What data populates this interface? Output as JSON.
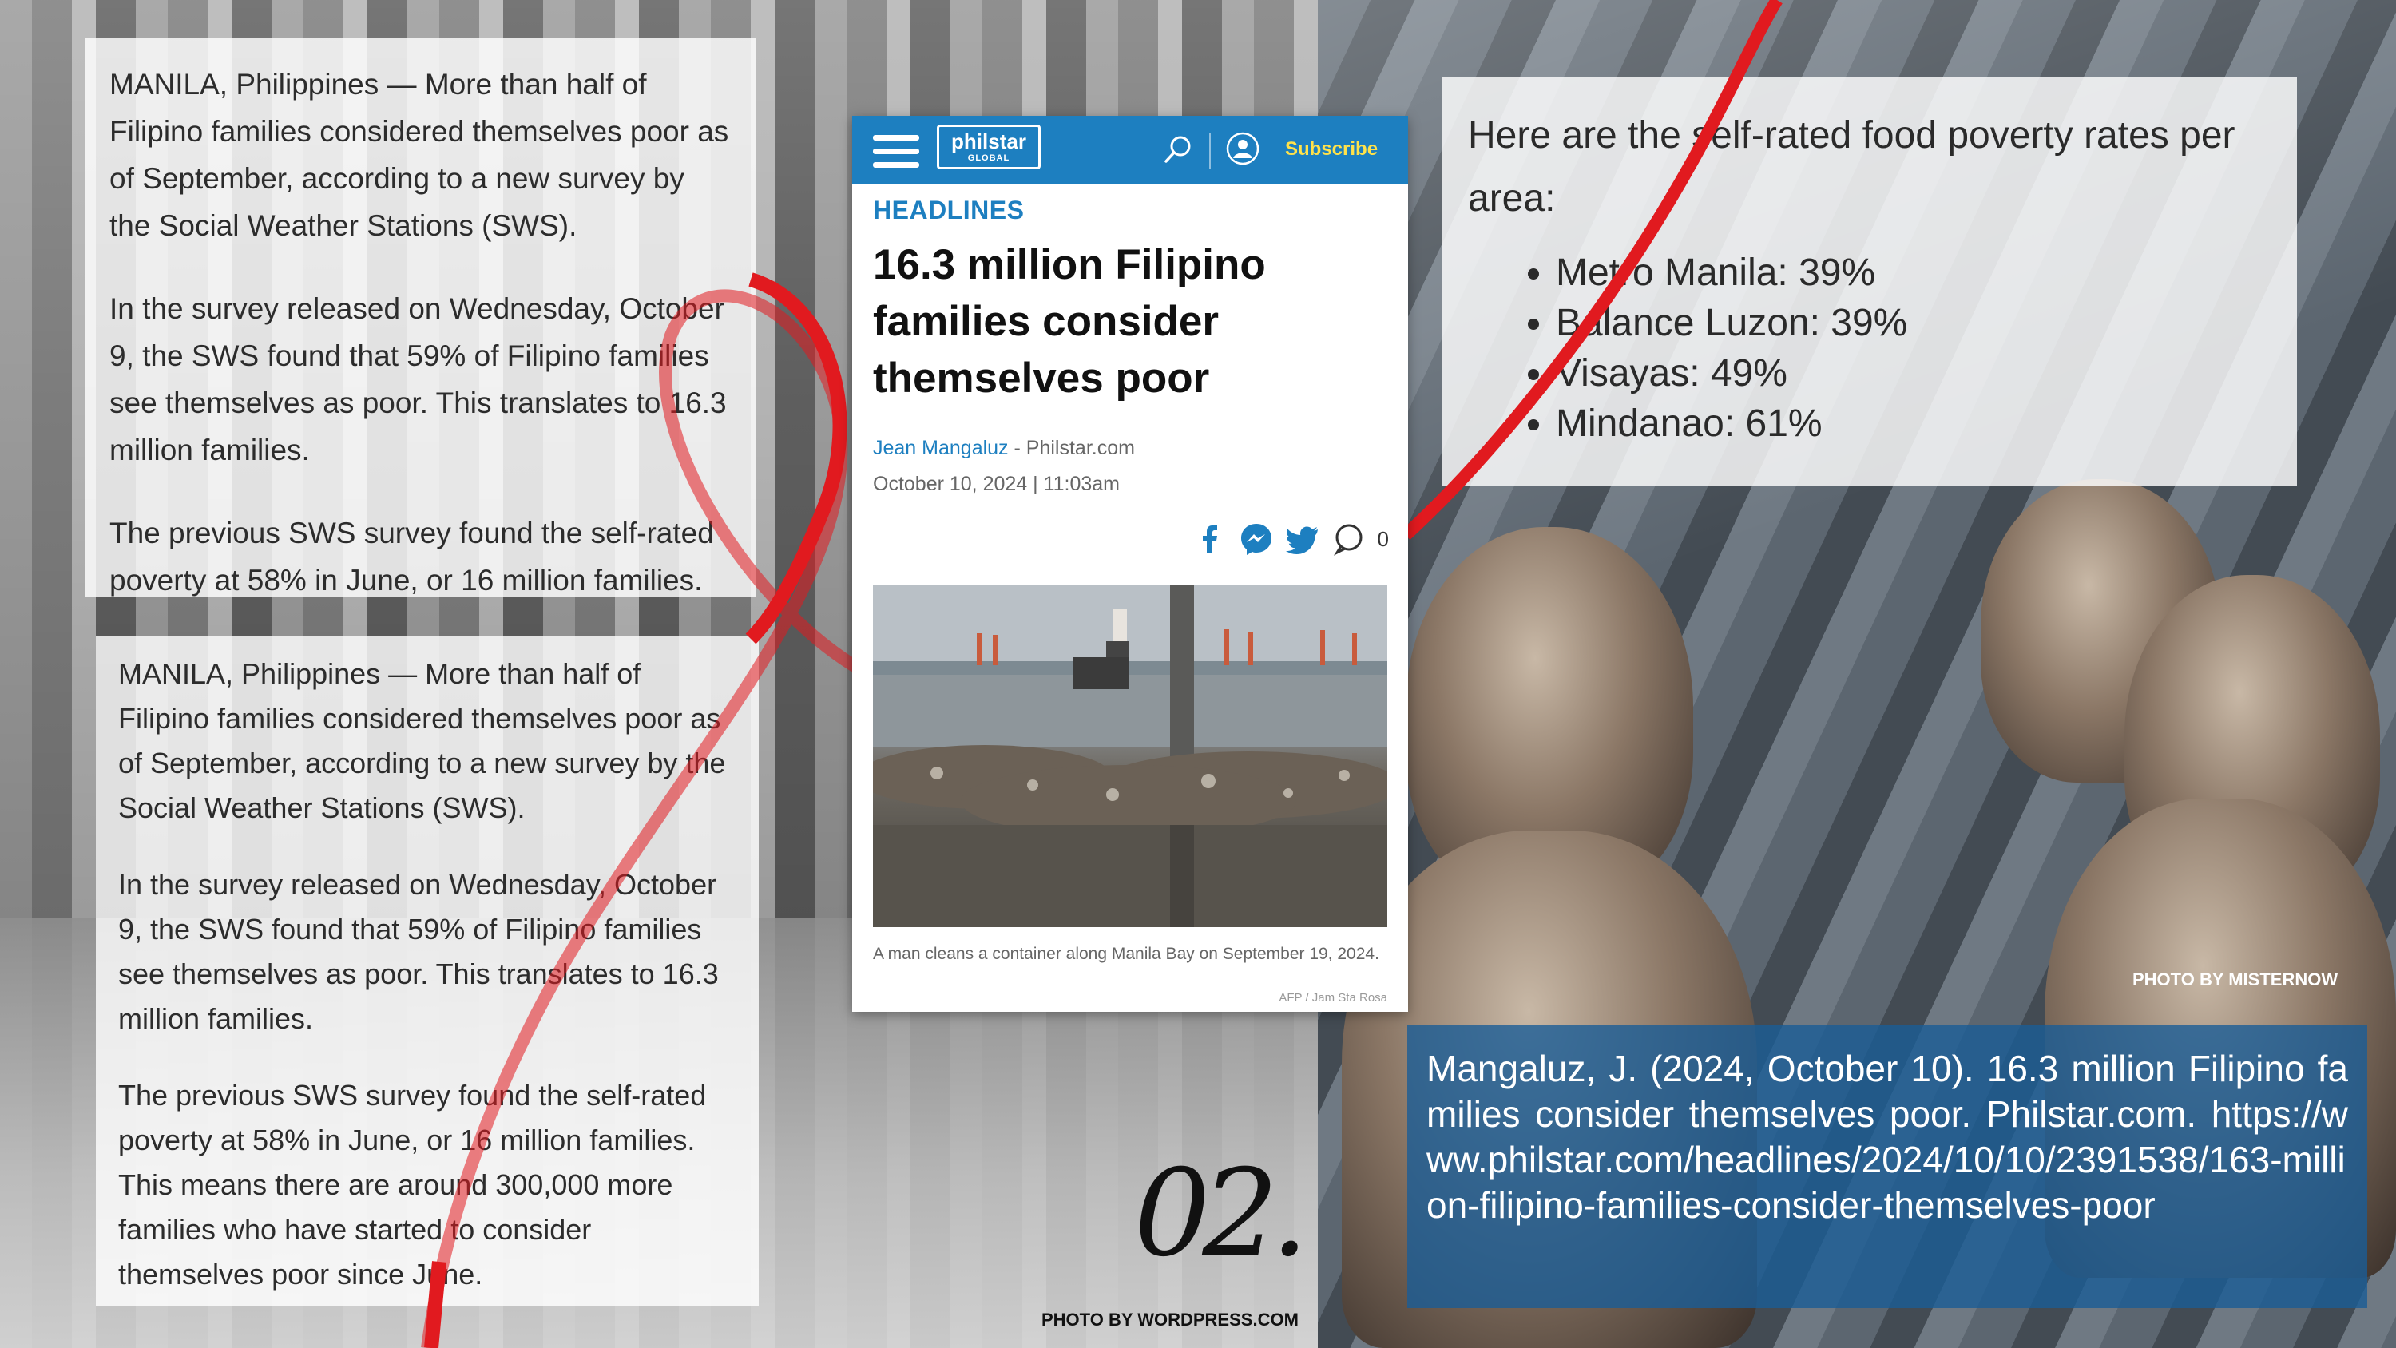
{
  "panels": {
    "top": [
      "MANILA, Philippines — More than half of Filipino families considered themselves poor as of September, according to a new survey by the Social Weather Stations (SWS).",
      "In the survey released on Wednesday, October 9, the SWS found that 59% of Filipino families see themselves as poor. This translates to 16.3 million families.",
      "The previous SWS survey found the self-rated poverty at 58% in June, or 16 million families."
    ],
    "bottom": [
      "MANILA, Philippines — More than half of Filipino families considered themselves poor as of September, according to a new survey by the Social Weather Stations (SWS).",
      "In the survey released on Wednesday, October 9, the SWS found that 59% of Filipino families see themselves as poor. This translates to 16.3 million families.",
      "The previous SWS survey found the self-rated poverty at 58% in June, or 16 million families. This means there are around 300,000 more families who have started to consider themselves poor since June."
    ],
    "food": {
      "intro": "Here are the self-rated food poverty rates per area:",
      "items": [
        "Metro Manila: 39%",
        "Balance Luzon: 39%",
        "Visayas: 49%",
        "Mindanao: 61%"
      ]
    }
  },
  "article": {
    "logo_line1": "philstar",
    "logo_line2": "GLOBAL",
    "subscribe": "Subscribe",
    "kicker": "HEADLINES",
    "headline": "16.3 million Filipino families consider themselves poor",
    "author": "Jean Mangaluz",
    "source": " - Philstar.com",
    "date": "October 10, 2024 | 11:03am",
    "comment_count": "0",
    "caption": "A man cleans a container along Manila Bay on September 19, 2024.",
    "photo_credit": "AFP / Jam Sta Rosa"
  },
  "slide_number": "02.",
  "credits": {
    "left": "PHOTO BY WORDPRESS.COM",
    "right": "PHOTO BY MISTERNOW"
  },
  "citation": "Mangaluz, J. (2024, October 10). 16.3 million Filipino families consider themselves poor. Philstar.com. https://www.philstar.com/headlines/2024/10/10/2391538/163-million-filipino-families-consider-themselves-poor",
  "colors": {
    "ribbon": "#e11a1f",
    "philstar_blue": "#1d7fc0",
    "subscribe_yellow": "#ffe24a",
    "citation_bg": "#1a5c96"
  }
}
